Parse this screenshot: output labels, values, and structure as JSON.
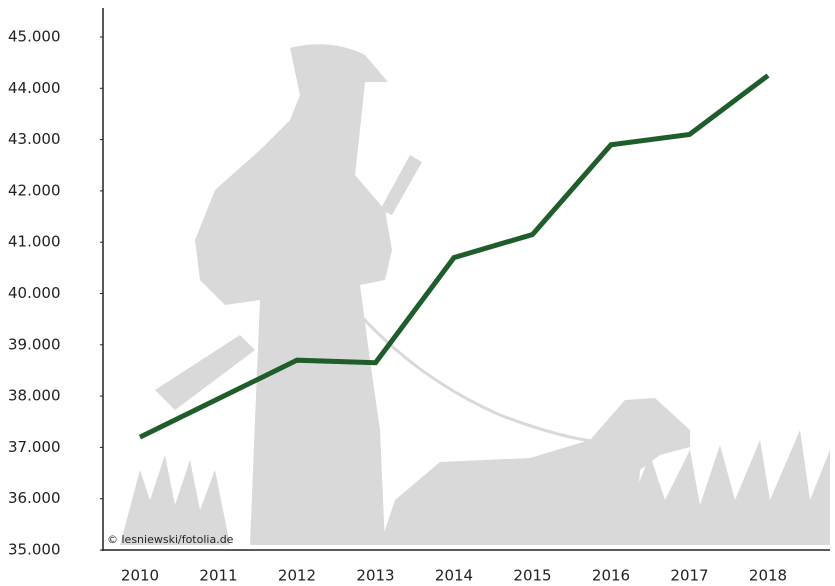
{
  "chart_data": {
    "type": "line",
    "credit": "© lesniewski/fotolia.de",
    "categories": [
      "2010",
      "2011",
      "2012",
      "2013",
      "2014",
      "2015",
      "2016",
      "2017",
      "2018"
    ],
    "series": [
      {
        "color": "#1f5e2b",
        "values": [
          37200,
          37950,
          38700,
          38650,
          40700,
          41150,
          42900,
          43100,
          44250
        ]
      }
    ],
    "ylim": [
      35000,
      45000
    ],
    "yticks": [
      {
        "value": 35000,
        "label": "35.000"
      },
      {
        "value": 36000,
        "label": "36.000"
      },
      {
        "value": 37000,
        "label": "37.000"
      },
      {
        "value": 38000,
        "label": "38.000"
      },
      {
        "value": 39000,
        "label": "39.000"
      },
      {
        "value": 40000,
        "label": "40.000"
      },
      {
        "value": 41000,
        "label": "41.000"
      },
      {
        "value": 42000,
        "label": "42.000"
      },
      {
        "value": 43000,
        "label": "43.000"
      },
      {
        "value": 44000,
        "label": "44.000"
      },
      {
        "value": 45000,
        "label": "45.000"
      }
    ]
  }
}
